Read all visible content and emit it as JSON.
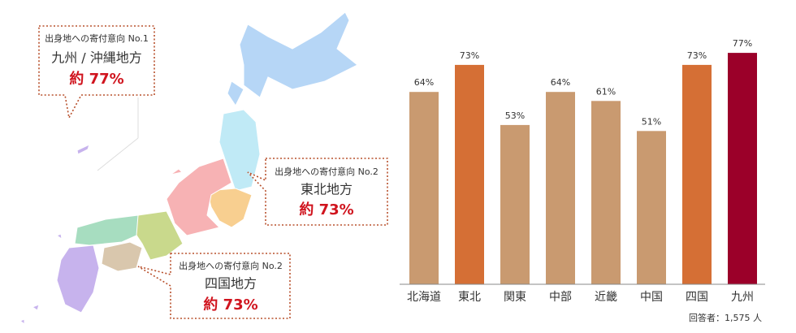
{
  "chart_data": {
    "type": "bar",
    "categories": [
      "北海道",
      "東北",
      "関東",
      "中部",
      "近畿",
      "中国",
      "四国",
      "九州"
    ],
    "values": [
      64,
      73,
      53,
      64,
      61,
      51,
      73,
      77
    ],
    "value_labels": [
      "64%",
      "73%",
      "53%",
      "64%",
      "61%",
      "51%",
      "73%",
      "77%"
    ],
    "colors": [
      "#c99a70",
      "#d56f35",
      "#c99a70",
      "#c99a70",
      "#c99a70",
      "#c99a70",
      "#d56f35",
      "#9b0029"
    ],
    "note": "回答者：1,575 人"
  },
  "callouts": [
    {
      "heading": "出身地への寄付意向 No.1",
      "region": "九州 / 沖縄地方",
      "share": "約 77%"
    },
    {
      "heading": "出身地への寄付意向 No.2",
      "region": "東北地方",
      "share": "約 73%"
    },
    {
      "heading": "出身地への寄付意向 No.2",
      "region": "四国地方",
      "share": "約 73%"
    }
  ]
}
